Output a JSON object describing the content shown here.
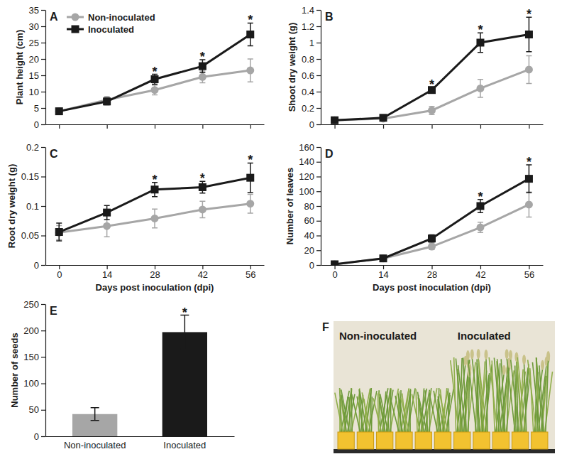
{
  "chart_data": [
    {
      "type": "line",
      "panel_label": "A",
      "y_label": "Plant height (cm)",
      "x": [
        0,
        14,
        28,
        42,
        56
      ],
      "xlim": [
        -4,
        60
      ],
      "xticks": [
        0,
        14,
        28,
        42,
        56
      ],
      "ylim": [
        0,
        35
      ],
      "yticks": [
        0,
        5,
        10,
        15,
        20,
        25,
        30,
        35
      ],
      "tick_labels": "y",
      "legend": "upper left",
      "series": [
        {
          "name": "Non-inoculated",
          "color": "#a6a6a6",
          "marker": "circle",
          "values": [
            4,
            7.5,
            10.5,
            14.5,
            16.5
          ],
          "errors": [
            0.5,
            1,
            1.5,
            1.8,
            3.5
          ]
        },
        {
          "name": "Inoculated",
          "color": "#1a1a1a",
          "marker": "square",
          "values": [
            4,
            7,
            13.8,
            17.8,
            27.5
          ],
          "errors": [
            0.5,
            1,
            1.5,
            2,
            3.5
          ]
        }
      ],
      "annotations": [
        {
          "x": 28,
          "text": "*"
        },
        {
          "x": 42,
          "text": "*"
        },
        {
          "x": 56,
          "text": "*"
        }
      ]
    },
    {
      "type": "line",
      "panel_label": "B",
      "y_label": "Shoot dry weight (g)",
      "x": [
        0,
        14,
        28,
        42,
        56
      ],
      "xlim": [
        -4,
        60
      ],
      "xticks": [
        0,
        14,
        28,
        42,
        56
      ],
      "ylim": [
        0,
        1.4
      ],
      "yticks": [
        0,
        0.2,
        0.4,
        0.6,
        0.8,
        1,
        1.2,
        1.4
      ],
      "tick_labels": "y",
      "series": [
        {
          "color": "#a6a6a6",
          "marker": "circle",
          "values": [
            0.05,
            0.07,
            0.17,
            0.44,
            0.67
          ],
          "errors": [
            0.02,
            0.02,
            0.05,
            0.11,
            0.17
          ]
        },
        {
          "color": "#1a1a1a",
          "marker": "square",
          "values": [
            0.05,
            0.08,
            0.42,
            1,
            1.1
          ],
          "errors": [
            0.02,
            0.02,
            0.03,
            0.12,
            0.21
          ]
        }
      ],
      "annotations": [
        {
          "x": 28,
          "text": "*"
        },
        {
          "x": 42,
          "text": "*"
        },
        {
          "x": 56,
          "text": "*"
        }
      ]
    },
    {
      "type": "line",
      "panel_label": "C",
      "y_label": "Root dry weight (g)",
      "x_label": "Days post inoculation (dpi)",
      "x": [
        0,
        14,
        28,
        42,
        56
      ],
      "xlim": [
        -4,
        60
      ],
      "xticks": [
        0,
        14,
        28,
        42,
        56
      ],
      "ylim": [
        0,
        0.2
      ],
      "yticks": [
        0,
        0.05,
        0.1,
        0.15,
        0.2
      ],
      "series": [
        {
          "color": "#a6a6a6",
          "marker": "circle",
          "values": [
            0.055,
            0.066,
            0.079,
            0.094,
            0.104
          ],
          "errors": [
            0.012,
            0.018,
            0.016,
            0.014,
            0.016
          ]
        },
        {
          "color": "#1a1a1a",
          "marker": "square",
          "values": [
            0.056,
            0.089,
            0.128,
            0.132,
            0.148
          ],
          "errors": [
            0.015,
            0.012,
            0.012,
            0.01,
            0.025
          ]
        }
      ],
      "annotations": [
        {
          "x": 28,
          "text": "*"
        },
        {
          "x": 42,
          "text": "*"
        },
        {
          "x": 56,
          "text": "*"
        }
      ]
    },
    {
      "type": "line",
      "panel_label": "D",
      "y_label": "Number of leaves",
      "x_label": "Days post inoculation (dpi)",
      "x": [
        0,
        14,
        28,
        42,
        56
      ],
      "xlim": [
        -4,
        60
      ],
      "xticks": [
        0,
        14,
        28,
        42,
        56
      ],
      "ylim": [
        0,
        160
      ],
      "yticks": [
        0,
        20,
        40,
        60,
        80,
        100,
        120,
        140,
        160
      ],
      "series": [
        {
          "color": "#a6a6a6",
          "marker": "circle",
          "values": [
            1,
            9,
            25,
            51,
            82
          ],
          "errors": [
            0.5,
            2,
            4,
            7,
            17
          ]
        },
        {
          "color": "#1a1a1a",
          "marker": "square",
          "values": [
            1,
            9,
            36,
            80,
            117
          ],
          "errors": [
            0.5,
            2,
            5,
            9,
            19
          ]
        }
      ],
      "annotations": [
        {
          "x": 42,
          "text": "*"
        },
        {
          "x": 56,
          "text": "*"
        }
      ]
    },
    {
      "type": "bar",
      "panel_label": "E",
      "y_label": "Number of seeds",
      "categories": [
        "Non-inoculated",
        "Inoculated"
      ],
      "values": [
        42,
        197
      ],
      "errors": [
        12,
        32
      ],
      "colors": [
        "#a6a6a6",
        "#1a1a1a"
      ],
      "ylim": [
        0,
        250
      ],
      "yticks": [
        0,
        50,
        100,
        150,
        200,
        250
      ],
      "annotations": [
        {
          "category": "Inoculated",
          "text": "*"
        }
      ]
    },
    {
      "type": "image",
      "panel_label": "F",
      "labels": [
        "Non-inoculated",
        "Inoculated"
      ]
    }
  ]
}
